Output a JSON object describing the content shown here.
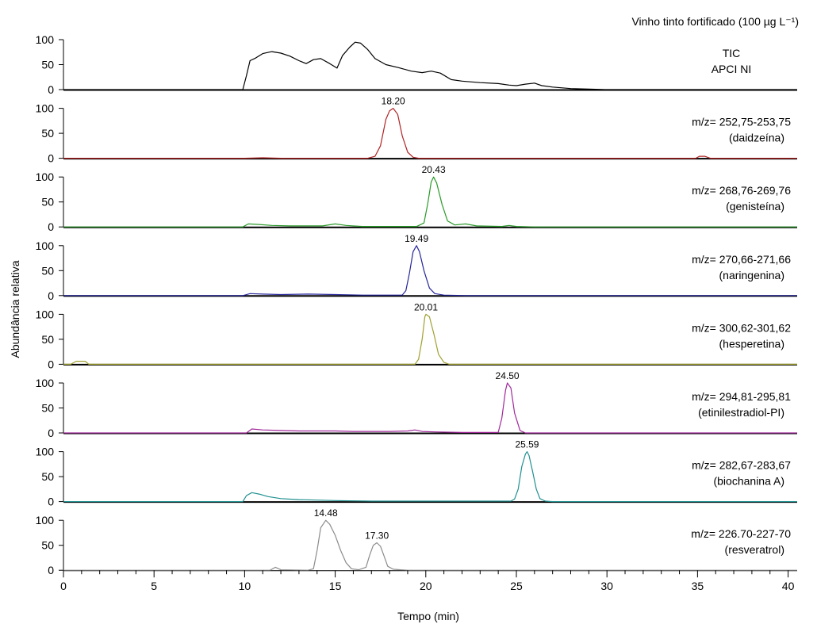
{
  "chart_data": {
    "type": "line",
    "title": "Vinho tinto fortificado (100 µg L⁻¹)",
    "xlabel": "Tempo (min)",
    "ylabel": "Abundância relativa",
    "xlim": [
      0,
      40.5
    ],
    "ylim": [
      0,
      100
    ],
    "x_ticks": [
      0,
      5,
      10,
      15,
      20,
      25,
      30,
      35,
      40
    ],
    "y_ticks": [
      0,
      50,
      100
    ],
    "grid": false,
    "legend": "none",
    "series": [
      {
        "name": "TIC",
        "label_lines": [
          "TIC",
          "APCI NI"
        ],
        "color": "#000000",
        "points": [
          [
            0,
            0
          ],
          [
            9.9,
            0
          ],
          [
            10.1,
            28
          ],
          [
            10.3,
            58
          ],
          [
            10.6,
            63
          ],
          [
            11.0,
            72
          ],
          [
            11.5,
            76
          ],
          [
            12.0,
            73
          ],
          [
            12.5,
            67
          ],
          [
            13.0,
            58
          ],
          [
            13.4,
            52
          ],
          [
            13.8,
            60
          ],
          [
            14.2,
            62
          ],
          [
            14.7,
            52
          ],
          [
            15.1,
            43
          ],
          [
            15.4,
            68
          ],
          [
            15.8,
            85
          ],
          [
            16.1,
            95
          ],
          [
            16.4,
            93
          ],
          [
            16.8,
            80
          ],
          [
            17.2,
            62
          ],
          [
            17.8,
            50
          ],
          [
            18.5,
            44
          ],
          [
            19.2,
            37
          ],
          [
            19.8,
            34
          ],
          [
            20.3,
            37
          ],
          [
            20.8,
            33
          ],
          [
            21.4,
            20
          ],
          [
            22.0,
            17
          ],
          [
            23.0,
            14
          ],
          [
            24.0,
            12
          ],
          [
            24.6,
            9
          ],
          [
            25.0,
            8
          ],
          [
            25.5,
            11
          ],
          [
            26.0,
            13
          ],
          [
            26.4,
            8
          ],
          [
            27.0,
            5
          ],
          [
            28.0,
            2
          ],
          [
            29.0,
            1
          ],
          [
            30.0,
            0
          ],
          [
            40.5,
            0
          ]
        ]
      },
      {
        "name": "m/z= 252,75-253,75",
        "compound": "(daidzeína)",
        "color": "#b02424",
        "peaks": [
          {
            "rt": 18.2,
            "label": "18.20"
          }
        ],
        "points": [
          [
            0,
            0
          ],
          [
            10.0,
            0
          ],
          [
            11.0,
            1
          ],
          [
            12.0,
            0
          ],
          [
            16.8,
            0
          ],
          [
            17.2,
            4
          ],
          [
            17.5,
            25
          ],
          [
            17.8,
            78
          ],
          [
            18.0,
            95
          ],
          [
            18.2,
            100
          ],
          [
            18.45,
            88
          ],
          [
            18.7,
            45
          ],
          [
            19.0,
            12
          ],
          [
            19.3,
            2
          ],
          [
            19.6,
            0
          ],
          [
            34.9,
            0
          ],
          [
            35.1,
            4
          ],
          [
            35.4,
            4
          ],
          [
            35.7,
            0
          ],
          [
            40.5,
            0
          ]
        ]
      },
      {
        "name": "m/z= 268,76-269,76",
        "compound": "(genisteína)",
        "color": "#2a9a2a",
        "peaks": [
          {
            "rt": 20.43,
            "label": "20.43"
          }
        ],
        "points": [
          [
            0,
            0
          ],
          [
            9.9,
            0
          ],
          [
            10.2,
            6
          ],
          [
            10.8,
            5
          ],
          [
            11.5,
            3
          ],
          [
            12.5,
            2
          ],
          [
            14.3,
            2
          ],
          [
            15.0,
            6
          ],
          [
            15.6,
            3
          ],
          [
            16.5,
            1
          ],
          [
            19.5,
            1
          ],
          [
            19.9,
            8
          ],
          [
            20.1,
            45
          ],
          [
            20.3,
            90
          ],
          [
            20.43,
            100
          ],
          [
            20.6,
            88
          ],
          [
            20.9,
            45
          ],
          [
            21.2,
            12
          ],
          [
            21.6,
            4
          ],
          [
            22.2,
            6
          ],
          [
            22.8,
            2
          ],
          [
            24.2,
            1
          ],
          [
            24.6,
            3
          ],
          [
            25.0,
            1
          ],
          [
            26.0,
            0
          ],
          [
            40.5,
            0
          ]
        ]
      },
      {
        "name": "m/z= 270,66-271,66",
        "compound": "(naringenina)",
        "color": "#26269a",
        "peaks": [
          {
            "rt": 19.49,
            "label": "19.49"
          }
        ],
        "points": [
          [
            0,
            0
          ],
          [
            9.9,
            0
          ],
          [
            10.3,
            4
          ],
          [
            11.0,
            3
          ],
          [
            12.0,
            2
          ],
          [
            13.5,
            3
          ],
          [
            15.0,
            2
          ],
          [
            16.5,
            1
          ],
          [
            18.7,
            1
          ],
          [
            18.9,
            10
          ],
          [
            19.1,
            45
          ],
          [
            19.3,
            88
          ],
          [
            19.49,
            100
          ],
          [
            19.65,
            88
          ],
          [
            19.9,
            50
          ],
          [
            20.2,
            15
          ],
          [
            20.5,
            4
          ],
          [
            21.0,
            1
          ],
          [
            22.2,
            0
          ],
          [
            40.5,
            0
          ]
        ]
      },
      {
        "name": "m/z= 300,62-301,62",
        "compound": "(hesperetina)",
        "color": "#a0a030",
        "peaks": [
          {
            "rt": 20.01,
            "label": "20.01"
          }
        ],
        "points": [
          [
            0,
            0
          ],
          [
            0.4,
            0
          ],
          [
            0.7,
            6
          ],
          [
            1.2,
            6
          ],
          [
            1.4,
            0
          ],
          [
            19.4,
            0
          ],
          [
            19.6,
            10
          ],
          [
            19.8,
            50
          ],
          [
            19.95,
            95
          ],
          [
            20.01,
            100
          ],
          [
            20.2,
            95
          ],
          [
            20.45,
            60
          ],
          [
            20.7,
            20
          ],
          [
            21.0,
            4
          ],
          [
            21.3,
            0
          ],
          [
            40.5,
            0
          ]
        ]
      },
      {
        "name": "m/z= 294,81-295,81",
        "compound": "(etinilestradiol-PI)",
        "color": "#a0289a",
        "peaks": [
          {
            "rt": 24.5,
            "label": "24.50"
          }
        ],
        "points": [
          [
            0,
            0
          ],
          [
            10.1,
            0
          ],
          [
            10.4,
            8
          ],
          [
            11.0,
            6
          ],
          [
            12.0,
            5
          ],
          [
            13.0,
            4
          ],
          [
            14.0,
            4
          ],
          [
            15.0,
            4
          ],
          [
            16.0,
            3
          ],
          [
            17.0,
            3
          ],
          [
            18.0,
            3
          ],
          [
            19.0,
            4
          ],
          [
            19.4,
            6
          ],
          [
            19.8,
            3
          ],
          [
            20.5,
            2
          ],
          [
            22.0,
            1
          ],
          [
            24.0,
            1
          ],
          [
            24.2,
            30
          ],
          [
            24.4,
            85
          ],
          [
            24.5,
            100
          ],
          [
            24.7,
            90
          ],
          [
            24.9,
            40
          ],
          [
            25.2,
            5
          ],
          [
            25.5,
            0
          ],
          [
            40.5,
            0
          ]
        ]
      },
      {
        "name": "m/z= 282,67-283,67",
        "compound": "(biochanina A)",
        "color": "#1f8f8f",
        "peaks": [
          {
            "rt": 25.59,
            "label": "25.59"
          }
        ],
        "points": [
          [
            0,
            0
          ],
          [
            9.9,
            0
          ],
          [
            10.1,
            12
          ],
          [
            10.4,
            18
          ],
          [
            10.8,
            15
          ],
          [
            11.3,
            10
          ],
          [
            12.0,
            6
          ],
          [
            13.0,
            4
          ],
          [
            14.0,
            3
          ],
          [
            15.0,
            2
          ],
          [
            17.0,
            1
          ],
          [
            20.0,
            1
          ],
          [
            24.7,
            1
          ],
          [
            24.9,
            5
          ],
          [
            25.1,
            25
          ],
          [
            25.3,
            70
          ],
          [
            25.5,
            95
          ],
          [
            25.59,
            100
          ],
          [
            25.7,
            92
          ],
          [
            25.9,
            60
          ],
          [
            26.1,
            25
          ],
          [
            26.3,
            6
          ],
          [
            26.6,
            1
          ],
          [
            27.0,
            0
          ],
          [
            40.5,
            0
          ]
        ]
      },
      {
        "name": "m/z= 226.70-227-70",
        "compound": "(resveratrol)",
        "color": "#8c8c8c",
        "peaks": [
          {
            "rt": 14.48,
            "label": "14.48"
          },
          {
            "rt": 17.3,
            "label": "17.30"
          }
        ],
        "points": [
          [
            0,
            0
          ],
          [
            11.4,
            0
          ],
          [
            11.7,
            6
          ],
          [
            12.0,
            1
          ],
          [
            13.5,
            0
          ],
          [
            13.8,
            3
          ],
          [
            14.0,
            40
          ],
          [
            14.2,
            85
          ],
          [
            14.48,
            100
          ],
          [
            14.7,
            92
          ],
          [
            15.0,
            70
          ],
          [
            15.3,
            40
          ],
          [
            15.6,
            15
          ],
          [
            15.9,
            3
          ],
          [
            16.3,
            1
          ],
          [
            16.7,
            6
          ],
          [
            16.9,
            30
          ],
          [
            17.1,
            50
          ],
          [
            17.3,
            55
          ],
          [
            17.5,
            48
          ],
          [
            17.7,
            28
          ],
          [
            17.9,
            8
          ],
          [
            18.2,
            2
          ],
          [
            18.6,
            1
          ],
          [
            19.0,
            0
          ],
          [
            40.5,
            0
          ]
        ]
      }
    ]
  }
}
